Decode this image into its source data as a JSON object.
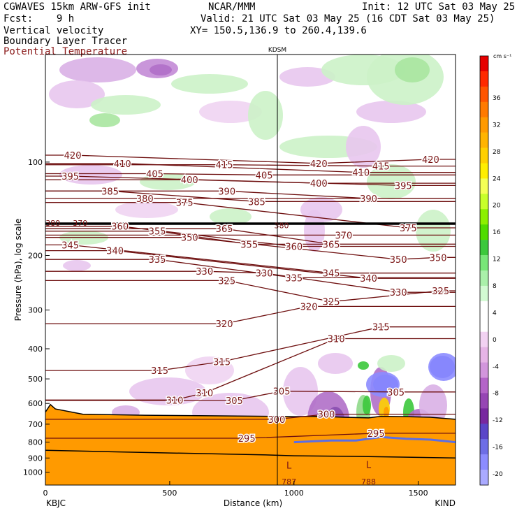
{
  "header": {
    "model": "CGWAVES 15km ARW-GFS init",
    "fcst": "Fcst:    9 h",
    "fields": [
      "Vertical velocity",
      "Boundary Layer Tracer",
      "Potential Temperature"
    ],
    "source": "NCAR/MMM",
    "valid": "Valid: 21 UTC Sat 03 May 25 (16 CDT Sat 03 May 25)",
    "xy": "XY= 150.5,136.9 to 260.4,139.6",
    "init": "Init: 12 UTC Sat 03 May 25"
  },
  "chart_data": {
    "type": "heatmap",
    "title": "",
    "station_marker": "KDSM",
    "xlabel": "Distance (km)",
    "ylabel": "Pressure (hPa), log scale",
    "xlim": [
      0,
      1650
    ],
    "ylim": [
      1100,
      45
    ],
    "x_ticks": [
      "0",
      "500",
      "1000",
      "1500"
    ],
    "y_ticks": [
      "100",
      "200",
      "300",
      "400",
      "500",
      "600",
      "700",
      "800",
      "900",
      "1000"
    ],
    "endpoints": {
      "left": "KBJC",
      "right": "KIND"
    },
    "colorbar": {
      "unit": "cm s⁻¹",
      "ticks": [
        "36",
        "32",
        "28",
        "24",
        "20",
        "16",
        "12",
        "8",
        "4",
        "0",
        "-4",
        "-8",
        "-12",
        "-16",
        "-20"
      ],
      "colors": [
        "#e60000",
        "#ff2a00",
        "#ff5500",
        "#ff7a00",
        "#ff9a00",
        "#ffb400",
        "#ffd000",
        "#ffee00",
        "#f4ff55",
        "#c8ff2a",
        "#8cf000",
        "#50dc00",
        "#3cc83c",
        "#78e678",
        "#aaf0aa",
        "#d2fad2",
        "#ffffff",
        "#ffffff",
        "#f2d2f2",
        "#e6b4e6",
        "#d296dc",
        "#b464c8",
        "#9646b4",
        "#7828a0",
        "#5a46c8",
        "#6e6ee6",
        "#8c8cff",
        "#aaaaff"
      ]
    },
    "theta_contours": [
      {
        "value": 420,
        "labels": [
          {
            "x": 110,
            "p": 95
          },
          {
            "x": 1100,
            "p": 101
          },
          {
            "x": 1550,
            "p": 98
          }
        ]
      },
      {
        "value": 415,
        "labels": [
          {
            "x": 720,
            "p": 102
          },
          {
            "x": 1350,
            "p": 103
          }
        ]
      },
      {
        "value": 410,
        "labels": [
          {
            "x": 310,
            "p": 101
          },
          {
            "x": 1270,
            "p": 108
          }
        ]
      },
      {
        "value": 405,
        "labels": [
          {
            "x": 440,
            "p": 109
          },
          {
            "x": 880,
            "p": 110
          }
        ]
      },
      {
        "value": 400,
        "labels": [
          {
            "x": 580,
            "p": 114
          },
          {
            "x": 1100,
            "p": 117
          }
        ]
      },
      {
        "value": 395,
        "labels": [
          {
            "x": 100,
            "p": 111
          },
          {
            "x": 1440,
            "p": 119
          }
        ]
      },
      {
        "value": 390,
        "labels": [
          {
            "x": 730,
            "p": 124
          },
          {
            "x": 1300,
            "p": 131
          }
        ]
      },
      {
        "value": 385,
        "labels": [
          {
            "x": 260,
            "p": 124
          },
          {
            "x": 850,
            "p": 134
          }
        ]
      },
      {
        "value": 380,
        "labels": [
          {
            "x": 400,
            "p": 131
          }
        ]
      },
      {
        "value": 375,
        "labels": [
          {
            "x": 560,
            "p": 135
          },
          {
            "x": 1460,
            "p": 163
          }
        ]
      },
      {
        "value": 370,
        "labels": [
          {
            "x": 1200,
            "p": 172
          }
        ]
      },
      {
        "value": 365,
        "labels": [
          {
            "x": 720,
            "p": 164
          },
          {
            "x": 1150,
            "p": 184
          }
        ]
      },
      {
        "value": 360,
        "labels": [
          {
            "x": 300,
            "p": 161
          },
          {
            "x": 1000,
            "p": 187
          }
        ]
      },
      {
        "value": 355,
        "labels": [
          {
            "x": 450,
            "p": 167
          },
          {
            "x": 820,
            "p": 184
          }
        ]
      },
      {
        "value": 350,
        "labels": [
          {
            "x": 580,
            "p": 175
          },
          {
            "x": 1420,
            "p": 206
          },
          {
            "x": 1580,
            "p": 203
          }
        ]
      },
      {
        "value": 345,
        "labels": [
          {
            "x": 100,
            "p": 185
          },
          {
            "x": 1150,
            "p": 228
          }
        ]
      },
      {
        "value": 340,
        "labels": [
          {
            "x": 280,
            "p": 193
          },
          {
            "x": 1300,
            "p": 237
          }
        ]
      },
      {
        "value": 335,
        "labels": [
          {
            "x": 450,
            "p": 206
          },
          {
            "x": 1000,
            "p": 236
          }
        ]
      },
      {
        "value": 330,
        "labels": [
          {
            "x": 640,
            "p": 225
          },
          {
            "x": 880,
            "p": 228
          },
          {
            "x": 1420,
            "p": 263
          }
        ]
      },
      {
        "value": 325,
        "labels": [
          {
            "x": 730,
            "p": 241
          },
          {
            "x": 1150,
            "p": 282
          },
          {
            "x": 1590,
            "p": 260
          }
        ]
      },
      {
        "value": 320,
        "labels": [
          {
            "x": 720,
            "p": 332
          },
          {
            "x": 1060,
            "p": 292
          }
        ]
      },
      {
        "value": 315,
        "labels": [
          {
            "x": 460,
            "p": 470
          },
          {
            "x": 710,
            "p": 440
          },
          {
            "x": 1350,
            "p": 340
          }
        ]
      },
      {
        "value": 310,
        "labels": [
          {
            "x": 520,
            "p": 585
          },
          {
            "x": 640,
            "p": 555
          },
          {
            "x": 1170,
            "p": 371
          }
        ]
      },
      {
        "value": 305,
        "labels": [
          {
            "x": 760,
            "p": 587
          },
          {
            "x": 950,
            "p": 548
          },
          {
            "x": 1410,
            "p": 551
          }
        ]
      },
      {
        "value": 300,
        "labels": [
          {
            "x": 930,
            "p": 675
          },
          {
            "x": 1130,
            "p": 650
          }
        ]
      },
      {
        "value": 295,
        "labels": [
          {
            "x": 810,
            "p": 777
          },
          {
            "x": 1330,
            "p": 749
          }
        ]
      }
    ],
    "tropopause_labels": [
      {
        "text": "380",
        "x": 30,
        "p": 157
      },
      {
        "text": "370",
        "x": 140,
        "p": 157
      },
      {
        "text": "380",
        "x": 950,
        "p": 160
      }
    ],
    "low_labels": [
      {
        "text": "L",
        "x": 980,
        "p": 950
      },
      {
        "text": "L",
        "x": 1300,
        "p": 945
      }
    ],
    "bottom_values": [
      {
        "text": "787",
        "x": 980,
        "p": 1080
      },
      {
        "text": "788",
        "x": 1300,
        "p": 1080
      }
    ]
  }
}
